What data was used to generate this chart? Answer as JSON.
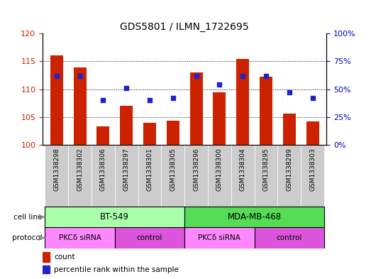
{
  "title": "GDS5801 / ILMN_1722695",
  "samples": [
    "GSM1338298",
    "GSM1338302",
    "GSM1338306",
    "GSM1338297",
    "GSM1338301",
    "GSM1338305",
    "GSM1338296",
    "GSM1338300",
    "GSM1338304",
    "GSM1338295",
    "GSM1338299",
    "GSM1338303"
  ],
  "bar_values": [
    116.1,
    113.9,
    103.3,
    107.0,
    104.0,
    104.4,
    113.0,
    109.5,
    115.5,
    112.3,
    105.7,
    104.2
  ],
  "percentile_values": [
    62,
    62,
    40,
    51,
    40,
    42,
    62,
    54,
    62,
    62,
    47,
    42
  ],
  "bar_color": "#cc2200",
  "dot_color": "#2222cc",
  "ylim_left": [
    100,
    120
  ],
  "ylim_right": [
    0,
    100
  ],
  "yticks_left": [
    100,
    105,
    110,
    115,
    120
  ],
  "yticks_right": [
    0,
    25,
    50,
    75,
    100
  ],
  "ytick_labels_right": [
    "0%",
    "25%",
    "50%",
    "75%",
    "100%"
  ],
  "cell_line_groups": [
    {
      "label": "BT-549",
      "start": 0,
      "end": 6,
      "color": "#aaffaa"
    },
    {
      "label": "MDA-MB-468",
      "start": 6,
      "end": 12,
      "color": "#55dd55"
    }
  ],
  "protocol_groups": [
    {
      "label": "PKCδ siRNA",
      "start": 0,
      "end": 3,
      "color": "#ff88ff"
    },
    {
      "label": "control",
      "start": 3,
      "end": 6,
      "color": "#dd55dd"
    },
    {
      "label": "PKCδ siRNA",
      "start": 6,
      "end": 9,
      "color": "#ff88ff"
    },
    {
      "label": "control",
      "start": 9,
      "end": 12,
      "color": "#dd55dd"
    }
  ],
  "sample_bg_color": "#cccccc",
  "legend_count_color": "#cc2200",
  "legend_dot_color": "#2222cc",
  "background_color": "#ffffff",
  "tick_label_color_left": "#cc2200",
  "tick_label_color_right": "#0000cc",
  "bar_width": 0.55,
  "grid_yticks": [
    105,
    110,
    115
  ]
}
